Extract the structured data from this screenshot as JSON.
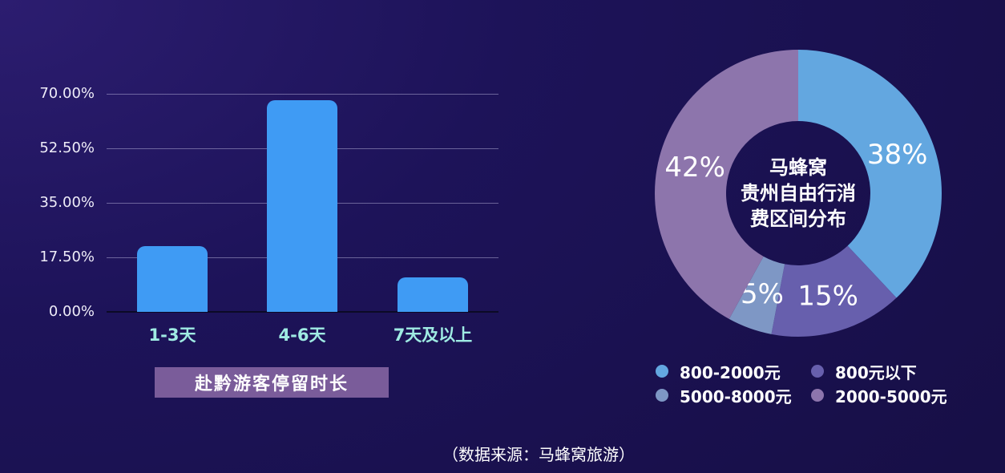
{
  "page": {
    "source_note": "（数据来源：马蜂窝旅游）"
  },
  "colors": {
    "background_top_left": "#2c1d70",
    "background_dark": "#170f47",
    "bar_fill": "#3f9bf4",
    "category_label": "#9febe3",
    "axis_label": "#eeecf8",
    "gridline": "rgba(202,198,232,0.45)",
    "banner_bg": "#7a5c9a",
    "text_white": "#ffffff"
  },
  "chart_data": [
    {
      "type": "bar",
      "title": "赴黔游客停留时长",
      "categories": [
        "1-3天",
        "4-6天",
        "7天及以上"
      ],
      "values": [
        21,
        68,
        11
      ],
      "unit": "%",
      "xlabel": "",
      "ylabel": "",
      "ylim": [
        0,
        70
      ],
      "y_ticks": [
        "70.00%",
        "52.50%",
        "35.00%",
        "17.50%",
        "0.00%"
      ],
      "grid": true,
      "bar_color": "#3f9bf4"
    },
    {
      "type": "pie",
      "donut": true,
      "title": "马蜂窝贵州自由行消费区间分布",
      "center_title_lines": [
        "马蜂窝",
        "贵州自由行消",
        "费区间分布"
      ],
      "label_format": "{value}%",
      "legend_position": "bottom",
      "slices": [
        {
          "label": "800-2000元",
          "value": 38,
          "color": "#63a7e0"
        },
        {
          "label": "800元以下",
          "value": 15,
          "color": "#675fad"
        },
        {
          "label": "5000-8000元",
          "value": 5,
          "color": "#7e97c5"
        },
        {
          "label": "2000-5000元",
          "value": 42,
          "color": "#8d75ac"
        }
      ]
    }
  ]
}
